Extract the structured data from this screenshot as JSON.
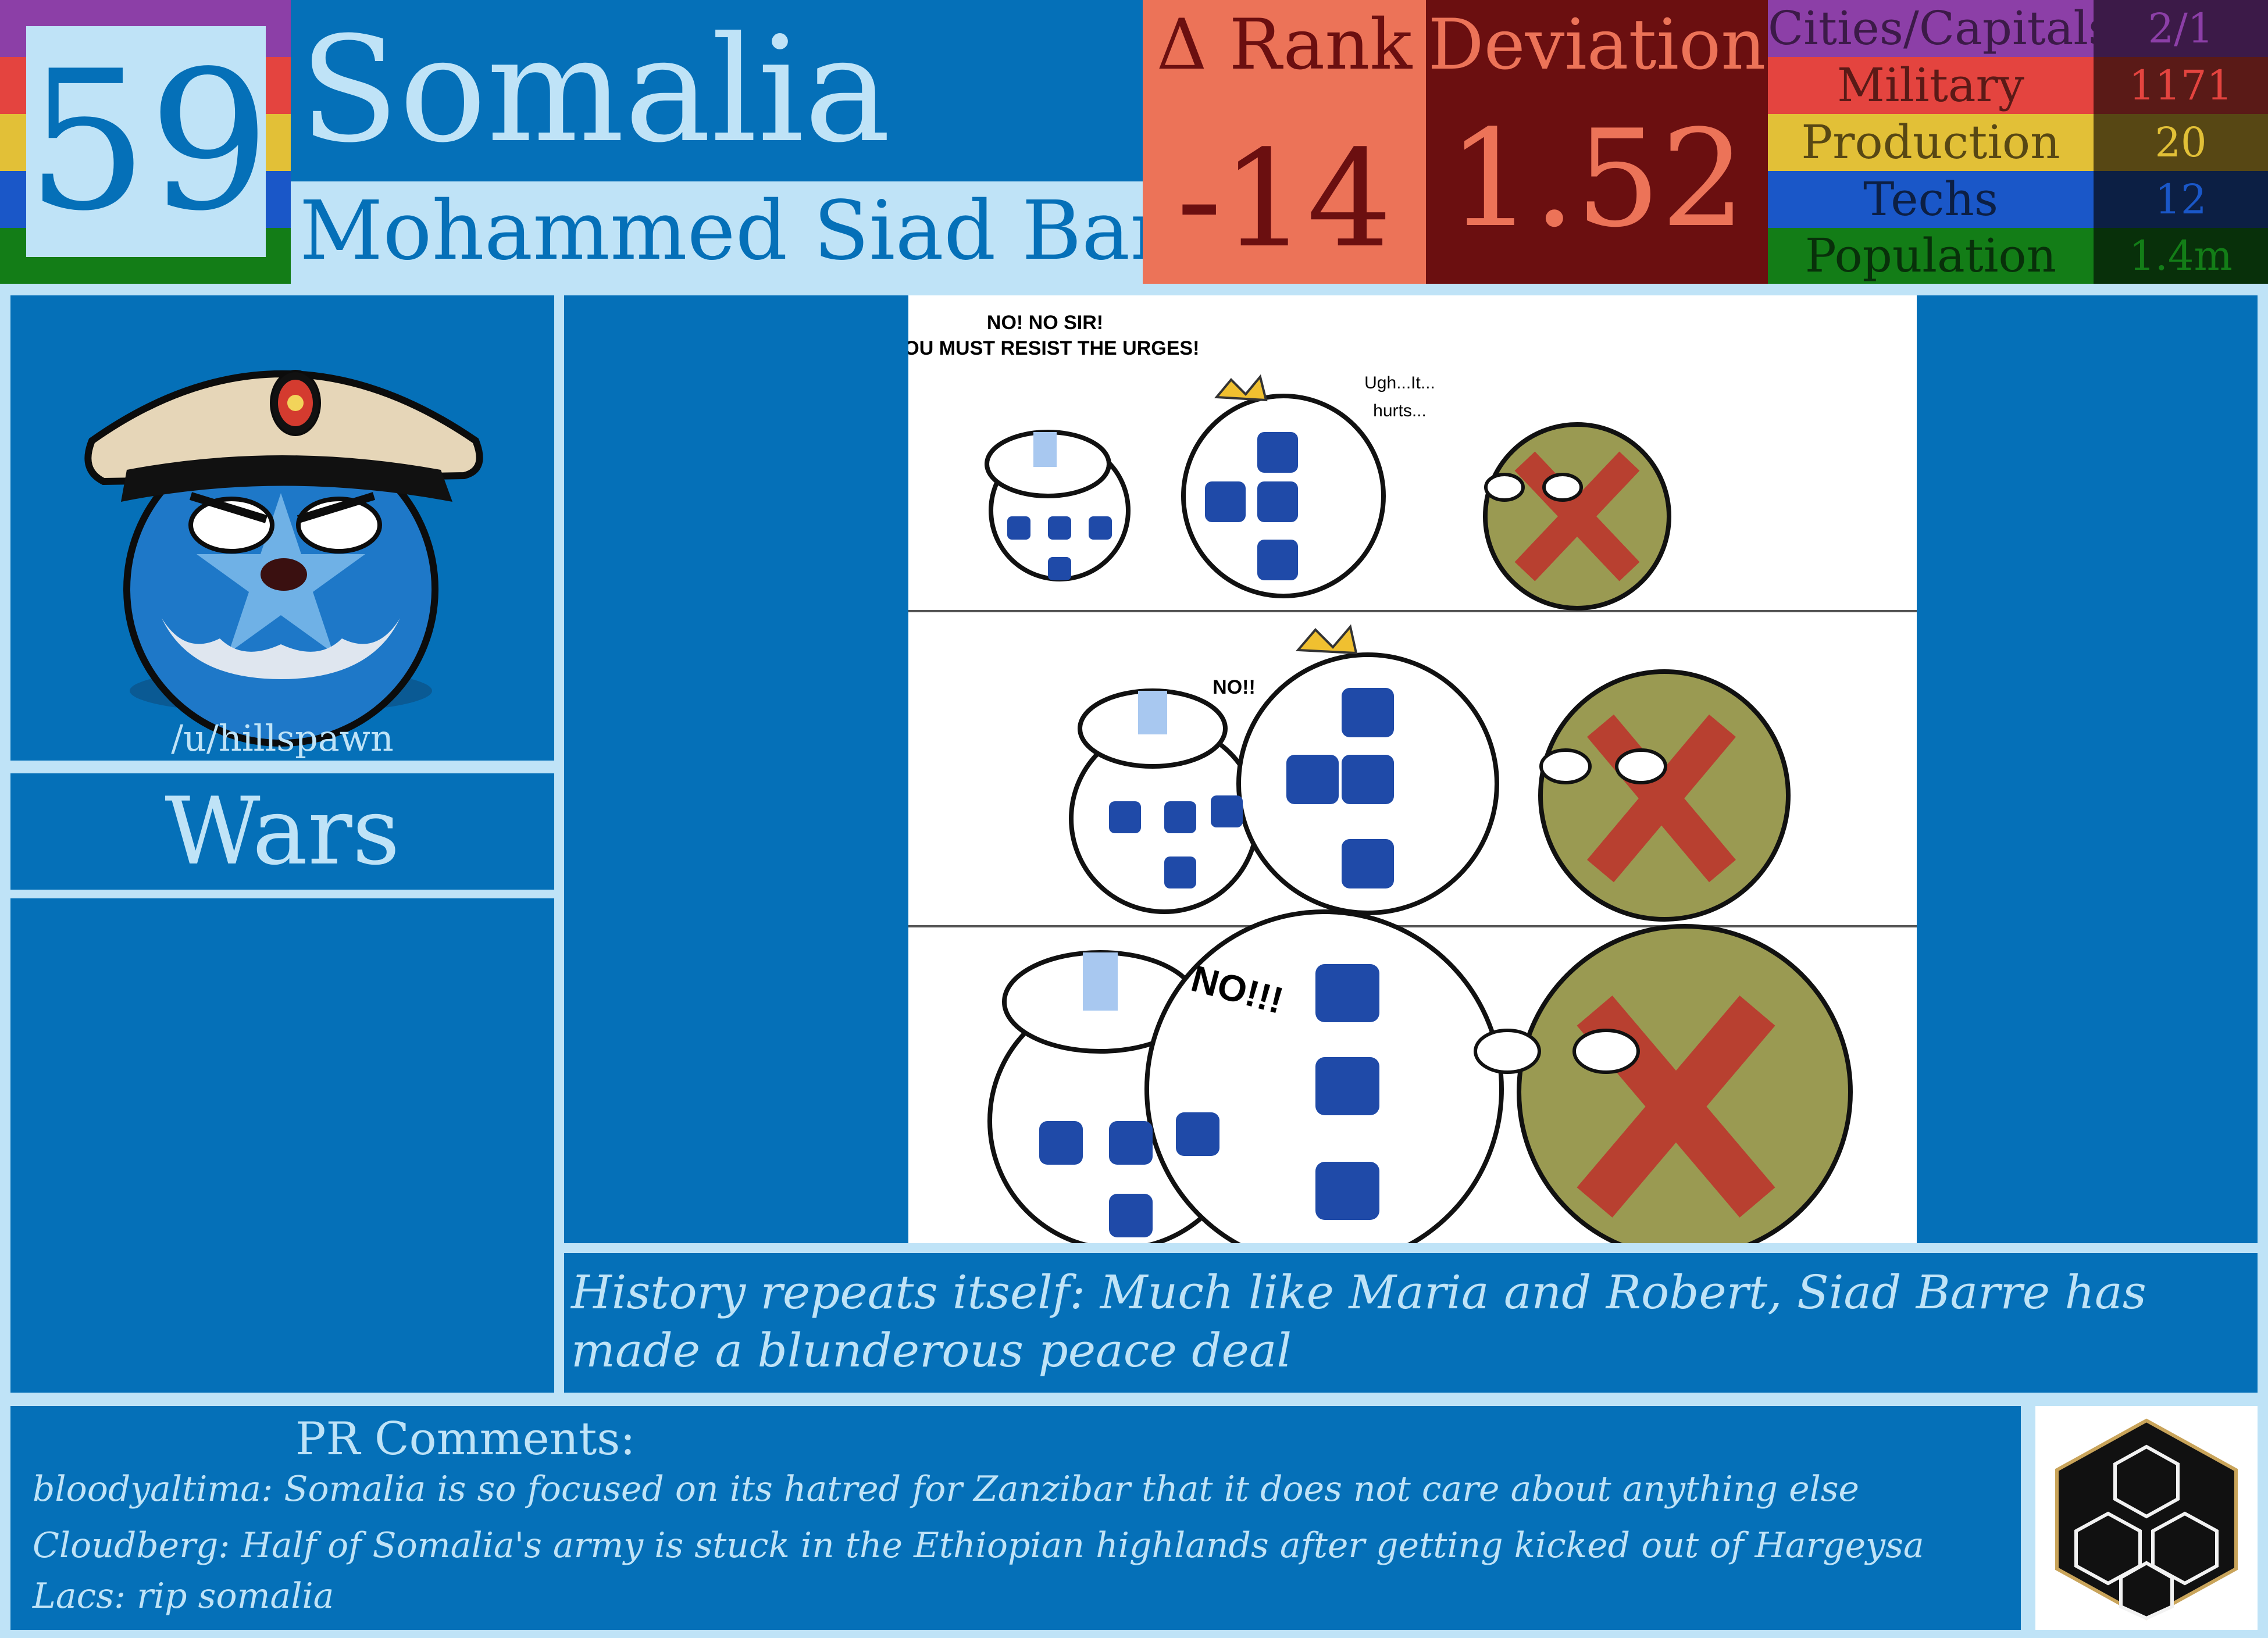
{
  "header": {
    "rank": "59",
    "country": "Somalia",
    "leader": "Mohammed Siad Barre",
    "delta_rank_label": "Δ Rank",
    "delta_rank_value": "-14",
    "deviation_label": "Deviation",
    "deviation_value": "1.52"
  },
  "stats": [
    {
      "label": "Cities/Capitals",
      "value": "2/1",
      "label_bg": "#8c3fa7",
      "value_bg": "#3c1a48",
      "label_color": "#3c1a48",
      "value_color": "#8c3fa7"
    },
    {
      "label": "Military",
      "value": "1171",
      "label_bg": "#e4443f",
      "value_bg": "#5a1a17",
      "label_color": "#5a1a17",
      "value_color": "#e4443f"
    },
    {
      "label": "Production",
      "value": "20",
      "label_bg": "#e2c037",
      "value_bg": "#574714",
      "label_color": "#574714",
      "value_color": "#e2c037"
    },
    {
      "label": "Techs",
      "value": "12",
      "label_bg": "#1a57c8",
      "value_bg": "#0c1f44",
      "label_color": "#0c1f44",
      "value_color": "#1a57c8"
    },
    {
      "label": "Population",
      "value": "1.4m",
      "label_bg": "#137d17",
      "value_bg": "#08300a",
      "label_color": "#08300a",
      "value_color": "#137d17"
    }
  ],
  "stripe_colors": [
    "#8c3fa7",
    "#e4443f",
    "#e2c037",
    "#1a57c8",
    "#137d17"
  ],
  "profile": {
    "credit": "/u/hillspawn"
  },
  "wars": {
    "title": "Wars"
  },
  "comic": {
    "panel1_text_a": "NO! NO SIR!",
    "panel1_text_b": "YOU MUST RESIST THE URGES!",
    "panel1_text_c": "Ugh...It...",
    "panel1_text_d": "hurts...",
    "panel2_text": "NO!!",
    "panel3_text": "NO!!!"
  },
  "caption": "History repeats itself: Much like Maria and Robert, Siad Barre has made a blunderous peace deal",
  "pr": {
    "title": "PR Comments:",
    "comments": [
      "bloodyaltima: Somalia is so focused on its hatred for Zanzibar that it does not care about anything else",
      "Cloudberg: Half of Somalia's army is stuck in the Ethiopian highlands after getting kicked out of Hargeysa",
      "Lacs: rip somalia"
    ]
  },
  "icons": {
    "logo": "hexagon-cube-logo",
    "avatar": "somalia-countryball-avatar"
  }
}
